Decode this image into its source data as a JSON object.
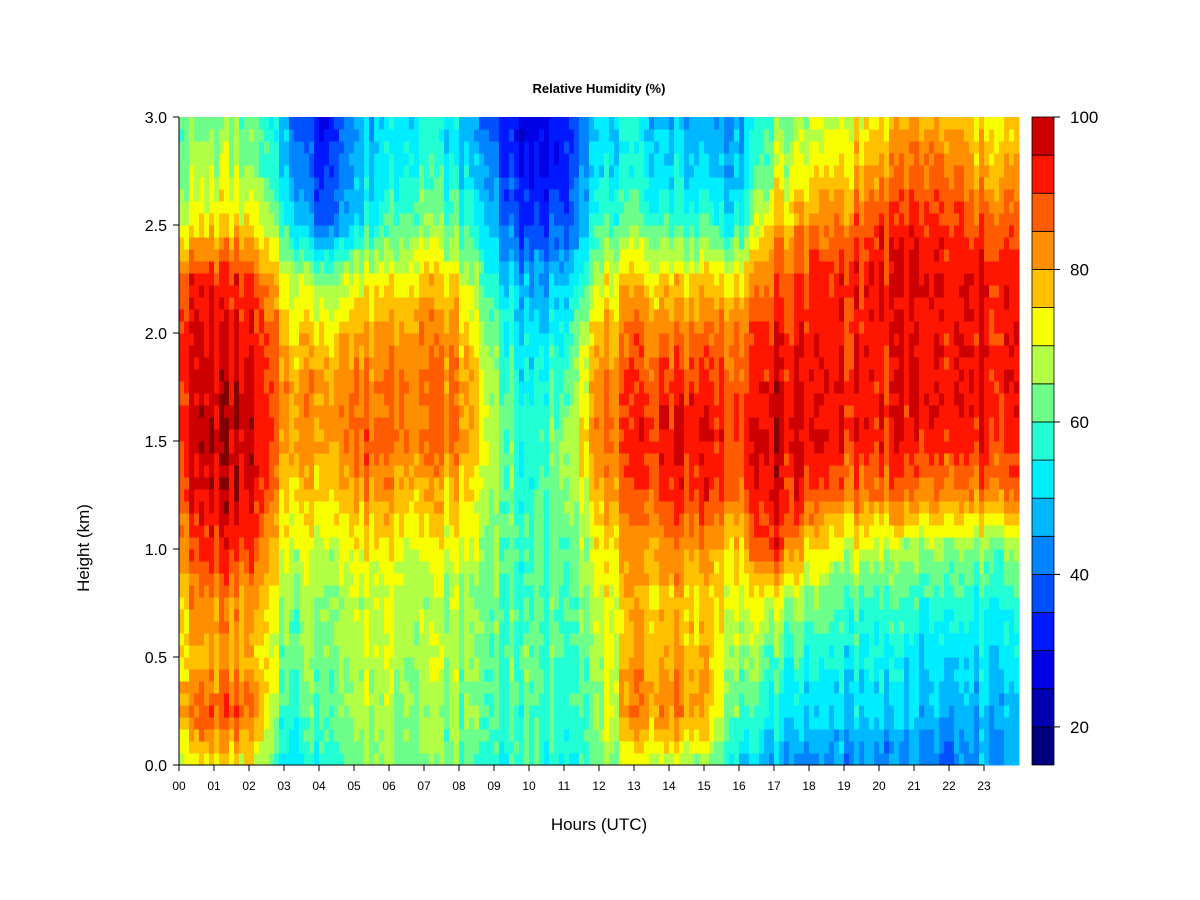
{
  "chart_data": {
    "type": "heatmap",
    "title": "Relative Humidity (%)",
    "xlabel": "Hours (UTC)",
    "ylabel": "Height (km)",
    "xlim": [
      0,
      24
    ],
    "ylim": [
      0,
      3
    ],
    "x_ticks": [
      "00",
      "01",
      "02",
      "03",
      "04",
      "05",
      "06",
      "07",
      "08",
      "09",
      "10",
      "11",
      "12",
      "13",
      "14",
      "15",
      "16",
      "17",
      "18",
      "19",
      "20",
      "21",
      "22",
      "23"
    ],
    "y_ticks": [
      "0.0",
      "0.5",
      "1.0",
      "1.5",
      "2.0",
      "2.5",
      "3.0"
    ],
    "x_tick_values": [
      0,
      1,
      2,
      3,
      4,
      5,
      6,
      7,
      8,
      9,
      10,
      11,
      12,
      13,
      14,
      15,
      16,
      17,
      18,
      19,
      20,
      21,
      22,
      23
    ],
    "y_tick_values": [
      0,
      0.5,
      1,
      1.5,
      2,
      2.5,
      3
    ],
    "colorbar": {
      "min": 15,
      "max": 100,
      "ticks": [
        "20",
        "40",
        "60",
        "80",
        "100"
      ],
      "tick_values": [
        20,
        40,
        60,
        80,
        100
      ],
      "levels": [
        15,
        20,
        25,
        30,
        35,
        40,
        45,
        50,
        55,
        60,
        65,
        70,
        75,
        80,
        85,
        90,
        95,
        100
      ],
      "colors": [
        "#00007f",
        "#0000b2",
        "#0000e5",
        "#0019ff",
        "#0050ff",
        "#0084ff",
        "#00b8ff",
        "#00eeff",
        "#22ffd4",
        "#6dff8a",
        "#b3ff45",
        "#f7ff00",
        "#ffc000",
        "#ff8e00",
        "#ff5b00",
        "#ff1600",
        "#cc0000",
        "#800000"
      ]
    },
    "grid_hours": [
      0,
      1,
      2,
      3,
      4,
      5,
      6,
      7,
      8,
      9,
      10,
      11,
      12,
      13,
      14,
      15,
      16,
      17,
      18,
      19,
      20,
      21,
      22,
      23,
      24
    ],
    "grid_heights_km": [
      0,
      0.25,
      0.5,
      0.75,
      1.0,
      1.25,
      1.5,
      1.75,
      2.0,
      2.25,
      2.5,
      2.75,
      3.0
    ],
    "values": [
      [
        70,
        75,
        72,
        52,
        58,
        62,
        65,
        65,
        62,
        58,
        58,
        58,
        62,
        68,
        70,
        65,
        52,
        45,
        42,
        45,
        42,
        42,
        38,
        45,
        45
      ],
      [
        85,
        88,
        87,
        58,
        62,
        65,
        68,
        66,
        64,
        60,
        58,
        60,
        64,
        82,
        85,
        80,
        60,
        55,
        50,
        50,
        50,
        48,
        45,
        48,
        48
      ],
      [
        75,
        80,
        78,
        62,
        64,
        67,
        70,
        68,
        66,
        62,
        60,
        62,
        66,
        78,
        82,
        78,
        65,
        60,
        55,
        55,
        55,
        52,
        50,
        52,
        52
      ],
      [
        78,
        85,
        82,
        66,
        66,
        68,
        70,
        68,
        66,
        62,
        58,
        62,
        68,
        76,
        78,
        76,
        70,
        70,
        62,
        60,
        58,
        58,
        56,
        56,
        56
      ],
      [
        84,
        92,
        90,
        70,
        70,
        72,
        74,
        72,
        70,
        64,
        58,
        64,
        72,
        80,
        84,
        82,
        76,
        92,
        75,
        70,
        68,
        66,
        64,
        64,
        64
      ],
      [
        90,
        98,
        96,
        76,
        76,
        80,
        82,
        80,
        76,
        66,
        56,
        66,
        78,
        86,
        92,
        92,
        86,
        96,
        88,
        85,
        84,
        84,
        82,
        84,
        84
      ],
      [
        93,
        100,
        97,
        82,
        82,
        86,
        88,
        86,
        84,
        68,
        54,
        68,
        84,
        90,
        95,
        95,
        90,
        98,
        94,
        93,
        92,
        94,
        90,
        92,
        92
      ],
      [
        92,
        98,
        96,
        82,
        82,
        84,
        86,
        86,
        84,
        66,
        52,
        62,
        82,
        88,
        92,
        92,
        88,
        96,
        94,
        94,
        92,
        94,
        92,
        94,
        94
      ],
      [
        93,
        95,
        94,
        78,
        76,
        80,
        82,
        84,
        80,
        62,
        48,
        58,
        78,
        84,
        86,
        86,
        84,
        92,
        92,
        92,
        92,
        94,
        92,
        94,
        94
      ],
      [
        90,
        92,
        90,
        72,
        64,
        70,
        74,
        78,
        72,
        55,
        44,
        50,
        68,
        76,
        76,
        76,
        74,
        88,
        90,
        92,
        94,
        96,
        94,
        94,
        94
      ],
      [
        72,
        75,
        74,
        58,
        40,
        50,
        60,
        66,
        60,
        48,
        32,
        40,
        58,
        62,
        60,
        58,
        56,
        78,
        82,
        86,
        90,
        92,
        90,
        88,
        88
      ],
      [
        65,
        68,
        66,
        50,
        34,
        46,
        55,
        60,
        54,
        42,
        28,
        36,
        52,
        54,
        52,
        50,
        48,
        68,
        72,
        76,
        80,
        86,
        84,
        80,
        80
      ],
      [
        62,
        65,
        62,
        48,
        30,
        44,
        52,
        56,
        50,
        36,
        24,
        34,
        50,
        52,
        48,
        46,
        46,
        62,
        66,
        70,
        74,
        80,
        78,
        74,
        74
      ]
    ]
  }
}
